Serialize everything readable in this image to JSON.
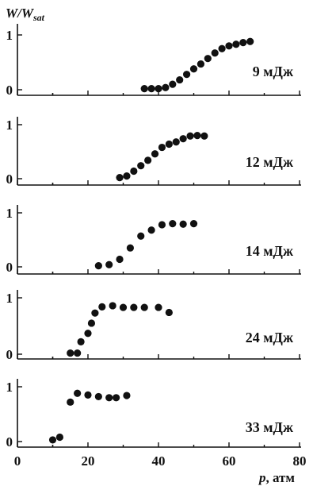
{
  "chart_data": {
    "type": "scatter",
    "ylabel_main": "W/W",
    "ylabel_sub": "sat",
    "xlabel_main": "p",
    "xlabel_unit": ", атм",
    "x_ticks": [
      "0",
      "20",
      "40",
      "60",
      "80"
    ],
    "xlim": [
      0,
      80
    ],
    "y_ticks": [
      "0",
      "1"
    ],
    "ylim": [
      0,
      1
    ],
    "panels": [
      {
        "label": "9 мДж",
        "points": [
          [
            36,
            0.02
          ],
          [
            38,
            0.02
          ],
          [
            40,
            0.02
          ],
          [
            42,
            0.04
          ],
          [
            44,
            0.1
          ],
          [
            46,
            0.18
          ],
          [
            48,
            0.28
          ],
          [
            50,
            0.38
          ],
          [
            52,
            0.47
          ],
          [
            54,
            0.57
          ],
          [
            56,
            0.67
          ],
          [
            58,
            0.75
          ],
          [
            60,
            0.8
          ],
          [
            62,
            0.83
          ],
          [
            64,
            0.86
          ],
          [
            66,
            0.88
          ]
        ]
      },
      {
        "label": "12 мДж",
        "points": [
          [
            29,
            0.02
          ],
          [
            31,
            0.05
          ],
          [
            33,
            0.14
          ],
          [
            35,
            0.24
          ],
          [
            37,
            0.34
          ],
          [
            39,
            0.46
          ],
          [
            41,
            0.58
          ],
          [
            43,
            0.64
          ],
          [
            45,
            0.68
          ],
          [
            47,
            0.74
          ],
          [
            49,
            0.79
          ],
          [
            51,
            0.8
          ],
          [
            53,
            0.79
          ]
        ]
      },
      {
        "label": "14 мДж",
        "points": [
          [
            23,
            0.02
          ],
          [
            26,
            0.04
          ],
          [
            29,
            0.14
          ],
          [
            32,
            0.35
          ],
          [
            35,
            0.57
          ],
          [
            38,
            0.68
          ],
          [
            41,
            0.78
          ],
          [
            44,
            0.8
          ],
          [
            47,
            0.79
          ],
          [
            50,
            0.8
          ]
        ]
      },
      {
        "label": "24 мДж",
        "points": [
          [
            15,
            0.02
          ],
          [
            17,
            0.02
          ],
          [
            18,
            0.22
          ],
          [
            20,
            0.37
          ],
          [
            21,
            0.55
          ],
          [
            22,
            0.73
          ],
          [
            24,
            0.84
          ],
          [
            27,
            0.86
          ],
          [
            30,
            0.83
          ],
          [
            33,
            0.83
          ],
          [
            36,
            0.83
          ],
          [
            40,
            0.83
          ],
          [
            43,
            0.74
          ]
        ]
      },
      {
        "label": "33 мДж",
        "points": [
          [
            10,
            0.03
          ],
          [
            12,
            0.08
          ],
          [
            15,
            0.72
          ],
          [
            17,
            0.88
          ],
          [
            20,
            0.85
          ],
          [
            23,
            0.82
          ],
          [
            26,
            0.8
          ],
          [
            28,
            0.8
          ],
          [
            31,
            0.84
          ]
        ]
      }
    ]
  }
}
